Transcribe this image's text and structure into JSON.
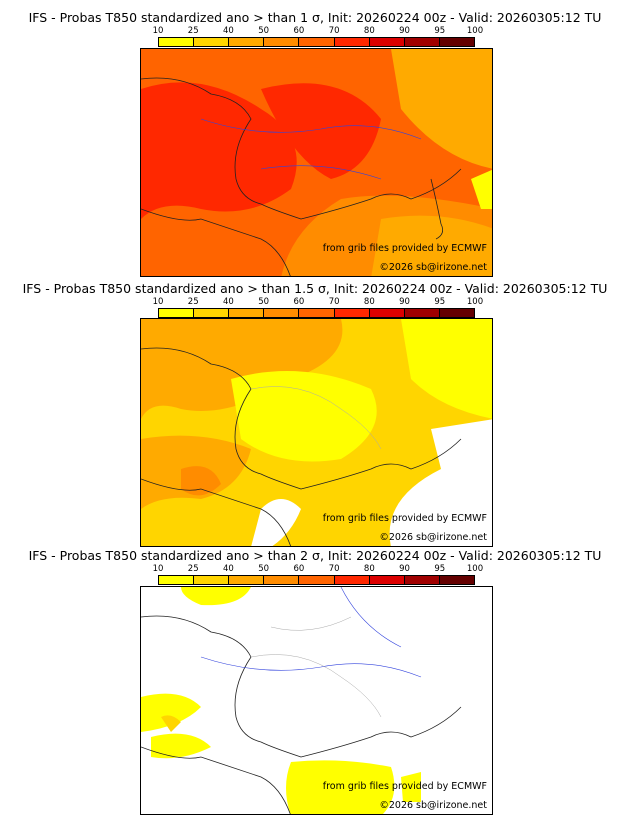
{
  "colorbar": {
    "ticks": [
      "10",
      "25",
      "40",
      "50",
      "60",
      "70",
      "80",
      "90",
      "95",
      "100"
    ],
    "colors": [
      "#ffff00",
      "#ffd500",
      "#ffaa00",
      "#ff8c00",
      "#ff6400",
      "#ff2800",
      "#dc0000",
      "#a00000",
      "#640000"
    ]
  },
  "panels": [
    {
      "title": "IFS - Probas T850  standardized ano > than 1 σ, Init: 20260224 00z - Valid: 20260305:12 TU",
      "level": "high"
    },
    {
      "title": "IFS - Probas T850  standardized ano > than 1.5 σ, Init: 20260224 00z - Valid: 20260305:12 TU",
      "level": "mid"
    },
    {
      "title": "IFS - Probas T850  standardized ano > than 2 σ, Init: 20260224 00z - Valid: 20260305:12 TU",
      "level": "low"
    }
  ],
  "credits": {
    "source": "from grib files provided by ECMWF",
    "copyright": "©2026 sb@irizone.net"
  }
}
